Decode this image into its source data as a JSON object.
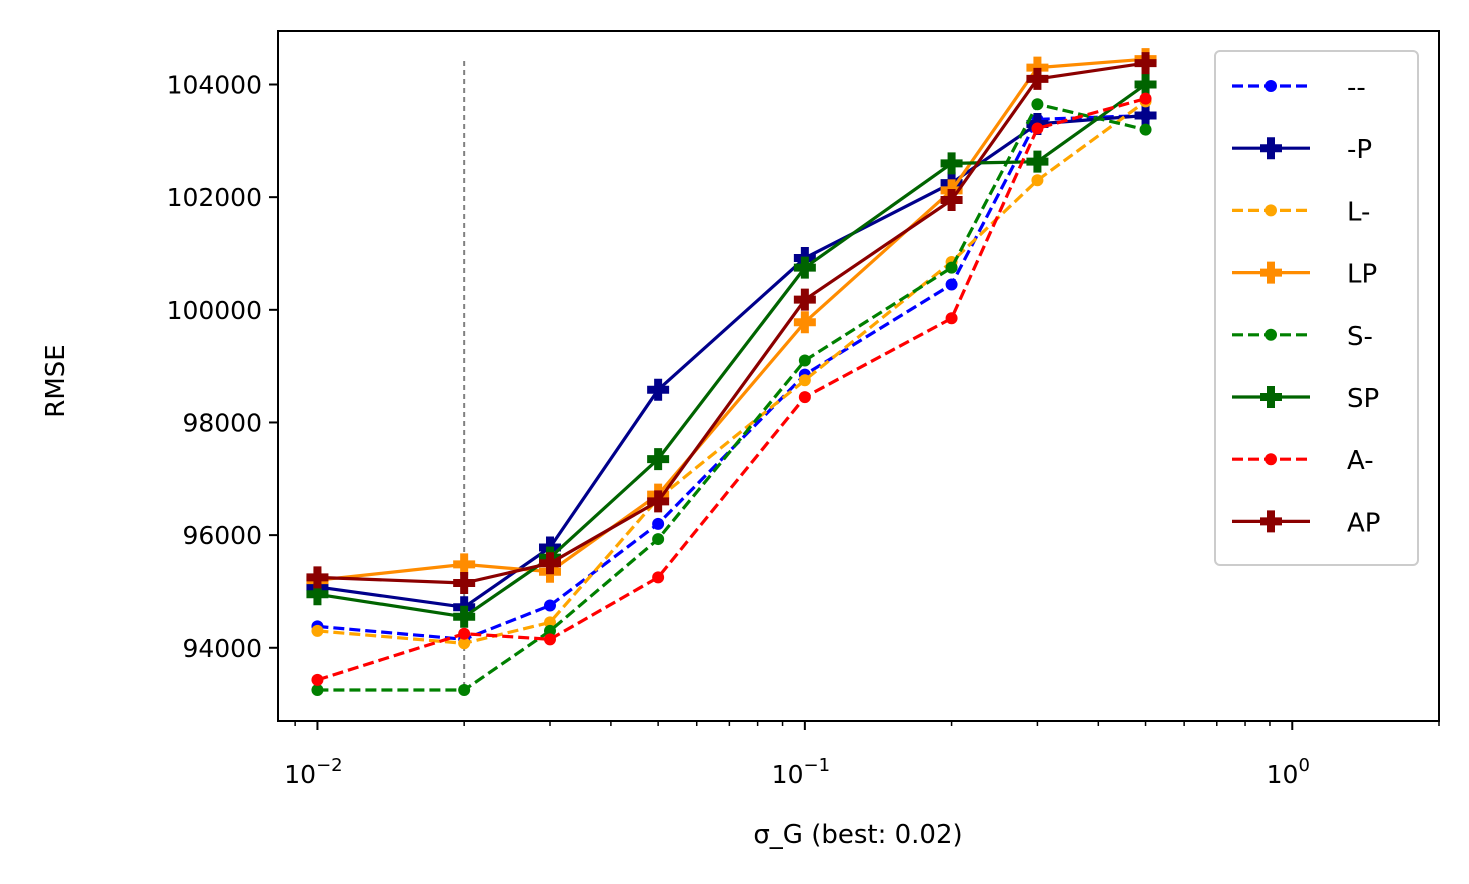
{
  "chart_data": {
    "type": "line",
    "title": "",
    "xlabel": "σ_G (best: 0.02)",
    "ylabel": "RMSE",
    "xscale": "log",
    "xlim": [
      0.0083,
      2.0
    ],
    "ylim": [
      92700,
      104950
    ],
    "x_ticks": [
      {
        "value": 0.01,
        "base": "10",
        "exp": "−2"
      },
      {
        "value": 0.1,
        "base": "10",
        "exp": "−1"
      },
      {
        "value": 1,
        "base": "10",
        "exp": "0"
      }
    ],
    "y_ticks": [
      94000,
      96000,
      98000,
      100000,
      102000,
      104000
    ],
    "best_x": 0.02,
    "grid": false,
    "legend_position": "top-right",
    "x": [
      0.01,
      0.02,
      0.03,
      0.05,
      0.1,
      0.2,
      0.3,
      0.5
    ],
    "series": [
      {
        "name": "--",
        "color": "#0000ff",
        "dash": true,
        "marker": "circle",
        "values": [
          94380,
          94150,
          94750,
          96200,
          98850,
          100450,
          103380,
          103450
        ]
      },
      {
        "name": "-P",
        "color": "#00008b",
        "dash": false,
        "marker": "plus",
        "values": [
          95080,
          94720,
          95780,
          98580,
          100920,
          102250,
          103300,
          103450
        ]
      },
      {
        "name": "L-",
        "color": "#ffa500",
        "dash": true,
        "marker": "circle",
        "values": [
          94300,
          94080,
          94450,
          96650,
          98750,
          100850,
          102300,
          103700
        ]
      },
      {
        "name": "LP",
        "color": "#ff8c00",
        "dash": false,
        "marker": "plus",
        "values": [
          95200,
          95480,
          95350,
          96720,
          99780,
          102120,
          104300,
          104450
        ]
      },
      {
        "name": "S-",
        "color": "#008000",
        "dash": true,
        "marker": "circle",
        "values": [
          93250,
          93250,
          94300,
          95930,
          99100,
          100750,
          103650,
          103200
        ]
      },
      {
        "name": "SP",
        "color": "#006400",
        "dash": false,
        "marker": "plus",
        "values": [
          94950,
          94550,
          95600,
          97350,
          100750,
          102600,
          102630,
          104000
        ]
      },
      {
        "name": "A-",
        "color": "#ff0000",
        "dash": true,
        "marker": "circle",
        "values": [
          93430,
          94250,
          94150,
          95250,
          98450,
          99850,
          103220,
          103750
        ]
      },
      {
        "name": "AP",
        "color": "#8b0000",
        "dash": false,
        "marker": "plus",
        "values": [
          95250,
          95150,
          95500,
          96600,
          100180,
          101950,
          104100,
          104380
        ]
      }
    ]
  }
}
